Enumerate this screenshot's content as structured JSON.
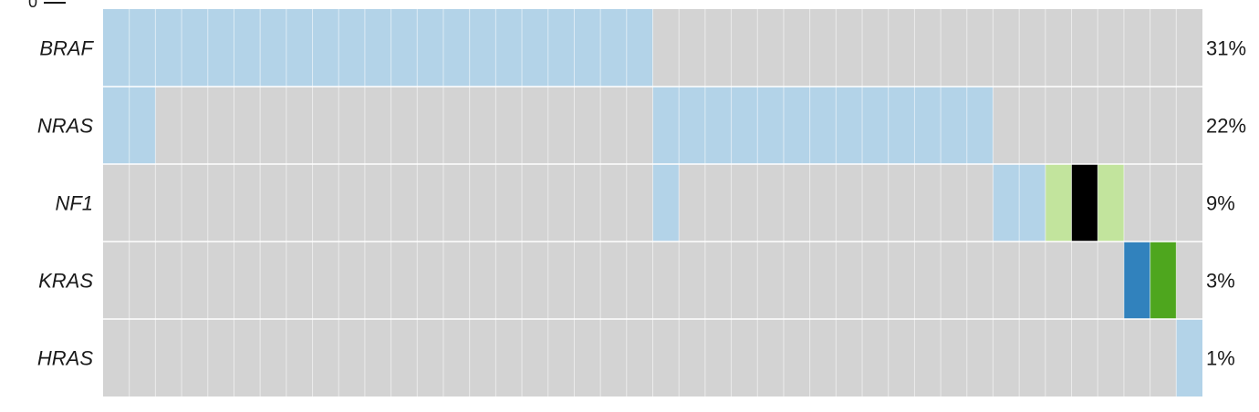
{
  "chart_data": {
    "type": "heatmap",
    "top_axis_tick_label": "0",
    "samples": 42,
    "colors": {
      "background": "#d3d3d3",
      "light_blue": "#b3d3e8",
      "dark_blue": "#3182bd",
      "light_green": "#c2e49d",
      "dark_green": "#4ea61e",
      "black": "#000000"
    },
    "rows": [
      {
        "gene": "BRAF",
        "percent": "31%",
        "cells": [
          {
            "start": 0,
            "end": 21,
            "color": "light_blue"
          }
        ]
      },
      {
        "gene": "NRAS",
        "percent": "22%",
        "cells": [
          {
            "start": 0,
            "end": 2,
            "color": "light_blue"
          },
          {
            "start": 21,
            "end": 34,
            "color": "light_blue"
          }
        ]
      },
      {
        "gene": "NF1",
        "percent": "9%",
        "cells": [
          {
            "start": 21,
            "end": 22,
            "color": "light_blue"
          },
          {
            "start": 34,
            "end": 36,
            "color": "light_blue"
          },
          {
            "start": 36,
            "end": 37,
            "color": "light_green"
          },
          {
            "start": 37,
            "end": 38,
            "color": "black"
          },
          {
            "start": 38,
            "end": 39,
            "color": "light_green"
          }
        ]
      },
      {
        "gene": "KRAS",
        "percent": "3%",
        "cells": [
          {
            "start": 39,
            "end": 40,
            "color": "dark_blue"
          },
          {
            "start": 40,
            "end": 41,
            "color": "dark_green"
          }
        ]
      },
      {
        "gene": "HRAS",
        "percent": "1%",
        "cells": [
          {
            "start": 41,
            "end": 42,
            "color": "light_blue"
          }
        ]
      }
    ]
  }
}
